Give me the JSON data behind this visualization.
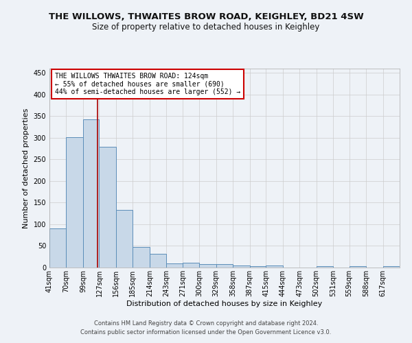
{
  "title": "THE WILLOWS, THWAITES BROW ROAD, KEIGHLEY, BD21 4SW",
  "subtitle": "Size of property relative to detached houses in Keighley",
  "xlabel": "Distribution of detached houses by size in Keighley",
  "ylabel": "Number of detached properties",
  "footnote1": "Contains HM Land Registry data © Crown copyright and database right 2024.",
  "footnote2": "Contains public sector information licensed under the Open Government Licence v3.0.",
  "annotation_line1": "THE WILLOWS THWAITES BROW ROAD: 124sqm",
  "annotation_line2": "← 55% of detached houses are smaller (690)",
  "annotation_line3": "44% of semi-detached houses are larger (552) →",
  "bar_color": "#c8d8e8",
  "bar_edge_color": "#5b8db8",
  "vline_color": "#aa0000",
  "vline_x": 124,
  "categories": [
    "41sqm",
    "70sqm",
    "99sqm",
    "127sqm",
    "156sqm",
    "185sqm",
    "214sqm",
    "243sqm",
    "271sqm",
    "300sqm",
    "329sqm",
    "358sqm",
    "387sqm",
    "415sqm",
    "444sqm",
    "473sqm",
    "502sqm",
    "531sqm",
    "559sqm",
    "588sqm",
    "617sqm"
  ],
  "values": [
    91,
    301,
    342,
    279,
    134,
    47,
    31,
    10,
    11,
    8,
    8,
    4,
    3,
    4,
    0,
    0,
    3,
    0,
    3,
    0,
    3
  ],
  "bin_edges": [
    41,
    70,
    99,
    127,
    156,
    185,
    214,
    243,
    271,
    300,
    329,
    358,
    387,
    415,
    444,
    473,
    502,
    531,
    559,
    588,
    617,
    646
  ],
  "ylim": [
    0,
    460
  ],
  "yticks": [
    0,
    50,
    100,
    150,
    200,
    250,
    300,
    350,
    400,
    450
  ],
  "background_color": "#eef2f7",
  "plot_bg_color": "#eef2f7",
  "grid_color": "#cccccc",
  "title_fontsize": 9.5,
  "subtitle_fontsize": 8.5,
  "ylabel_fontsize": 8,
  "xlabel_fontsize": 8,
  "tick_fontsize": 7,
  "footnote_fontsize": 6,
  "annotation_fontsize": 7
}
